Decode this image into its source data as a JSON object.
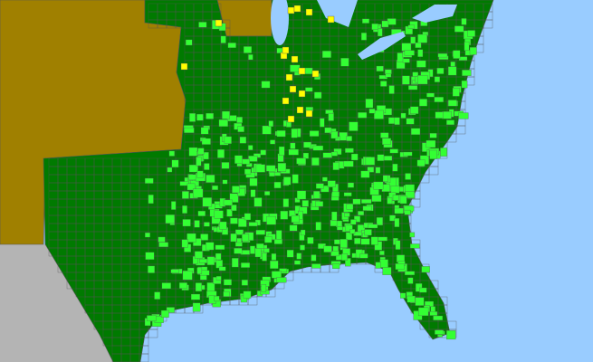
{
  "map": {
    "colors": {
      "water": "#99ccff",
      "outside_region": "#a08000",
      "foreign_land": "#b4b4b4",
      "present_native": "#007a00",
      "present_common": "#33ff33",
      "present_rare": "#ffff00",
      "county_borders": "#555555"
    }
  }
}
